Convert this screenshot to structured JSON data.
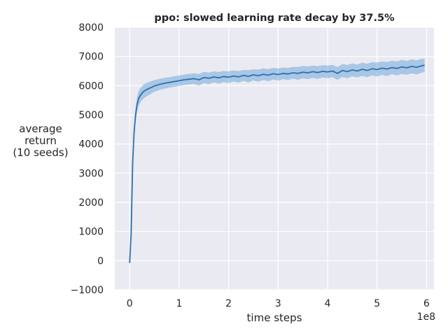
{
  "chart_data": {
    "type": "line",
    "title": "ppo: slowed learning rate decay by 37.5%",
    "xlabel": "time steps",
    "ylabel_lines": [
      "average",
      "return",
      "(10 seeds)"
    ],
    "x_offset_label": "1e8",
    "xlim": [
      -0.3,
      6.15
    ],
    "ylim": [
      -1000,
      8000
    ],
    "x_ticks": [
      0,
      1,
      2,
      3,
      4,
      5,
      6
    ],
    "x_tick_labels": [
      "0",
      "1",
      "2",
      "3",
      "4",
      "5",
      "6"
    ],
    "y_ticks": [
      -1000,
      0,
      1000,
      2000,
      3000,
      4000,
      5000,
      6000,
      7000,
      8000
    ],
    "y_tick_labels": [
      "−1000",
      "0",
      "1000",
      "2000",
      "3000",
      "4000",
      "5000",
      "6000",
      "7000",
      "8000"
    ],
    "grid": true,
    "background": "#eaeaf2",
    "grid_color": "#ffffff",
    "line_color": "#2a72b0",
    "band_color": "#5b9bd5",
    "series": [
      {
        "x": [
          0.0,
          0.03,
          0.06,
          0.09,
          0.12,
          0.15,
          0.18,
          0.21,
          0.24,
          0.27,
          0.3,
          0.35,
          0.4,
          0.45,
          0.5,
          0.6,
          0.7,
          0.8,
          0.9,
          1.0,
          1.1,
          1.2,
          1.3,
          1.4,
          1.5,
          1.6,
          1.7,
          1.8,
          1.9,
          2.0,
          2.1,
          2.2,
          2.3,
          2.4,
          2.5,
          2.6,
          2.7,
          2.8,
          2.9,
          3.0,
          3.1,
          3.2,
          3.3,
          3.4,
          3.5,
          3.6,
          3.7,
          3.8,
          3.9,
          4.0,
          4.1,
          4.2,
          4.3,
          4.4,
          4.5,
          4.6,
          4.7,
          4.8,
          4.9,
          5.0,
          5.1,
          5.2,
          5.3,
          5.4,
          5.5,
          5.6,
          5.7,
          5.8,
          5.9,
          5.96
        ],
        "y": [
          -80,
          900,
          3300,
          4400,
          5000,
          5350,
          5550,
          5650,
          5720,
          5780,
          5820,
          5870,
          5910,
          5950,
          5990,
          6040,
          6080,
          6110,
          6140,
          6170,
          6200,
          6220,
          6240,
          6200,
          6280,
          6250,
          6300,
          6270,
          6310,
          6290,
          6330,
          6300,
          6350,
          6320,
          6370,
          6340,
          6390,
          6360,
          6410,
          6380,
          6420,
          6400,
          6440,
          6420,
          6460,
          6440,
          6480,
          6450,
          6490,
          6470,
          6500,
          6420,
          6520,
          6480,
          6540,
          6500,
          6560,
          6520,
          6580,
          6550,
          6600,
          6570,
          6620,
          6590,
          6640,
          6610,
          6660,
          6630,
          6680,
          6700
        ],
        "lower": [
          -120,
          800,
          3100,
          4150,
          4750,
          5100,
          5300,
          5400,
          5480,
          5540,
          5580,
          5640,
          5690,
          5740,
          5790,
          5850,
          5890,
          5930,
          5960,
          5990,
          6020,
          6040,
          6060,
          6000,
          6090,
          6050,
          6110,
          6070,
          6120,
          6090,
          6140,
          6100,
          6160,
          6110,
          6180,
          6130,
          6190,
          6150,
          6210,
          6170,
          6220,
          6190,
          6240,
          6200,
          6250,
          6220,
          6270,
          6230,
          6280,
          6250,
          6290,
          6200,
          6300,
          6250,
          6320,
          6280,
          6330,
          6290,
          6350,
          6310,
          6370,
          6330,
          6390,
          6350,
          6400,
          6370,
          6420,
          6390,
          6440,
          6480
        ],
        "upper": [
          -40,
          1000,
          3500,
          4650,
          5250,
          5600,
          5800,
          5900,
          5960,
          6020,
          6060,
          6100,
          6130,
          6160,
          6190,
          6230,
          6270,
          6290,
          6320,
          6350,
          6380,
          6400,
          6420,
          6400,
          6470,
          6450,
          6490,
          6470,
          6500,
          6490,
          6520,
          6500,
          6540,
          6530,
          6560,
          6550,
          6590,
          6570,
          6610,
          6590,
          6620,
          6610,
          6640,
          6640,
          6670,
          6660,
          6690,
          6670,
          6700,
          6690,
          6710,
          6640,
          6740,
          6710,
          6760,
          6720,
          6790,
          6750,
          6810,
          6790,
          6830,
          6810,
          6850,
          6830,
          6880,
          6850,
          6900,
          6870,
          6920,
          6920
        ]
      }
    ]
  }
}
